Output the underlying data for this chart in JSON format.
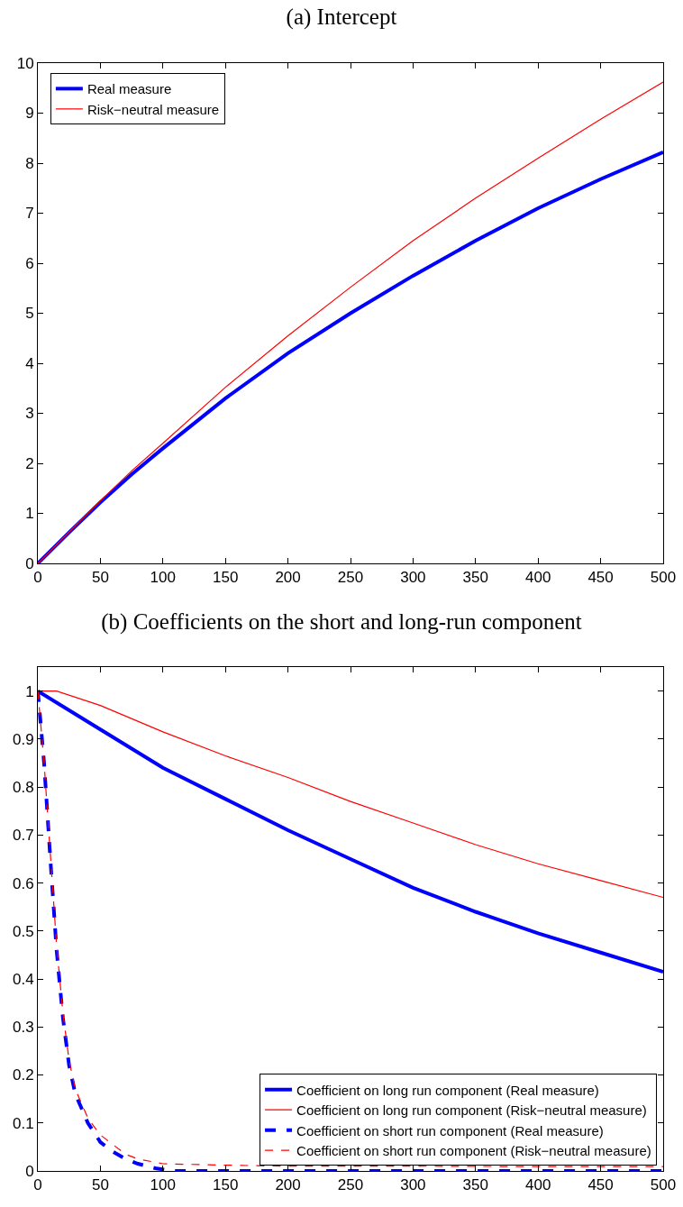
{
  "chart_data": [
    {
      "type": "line",
      "title": "(a) Intercept",
      "xlim": [
        0,
        500
      ],
      "xticks": [
        0,
        50,
        100,
        150,
        200,
        250,
        300,
        350,
        400,
        450,
        500
      ],
      "ylim": [
        0,
        10
      ],
      "yticks": [
        0,
        1,
        2,
        3,
        4,
        5,
        6,
        7,
        8,
        9,
        10
      ],
      "grid": false,
      "legend": "top left",
      "x": [
        0,
        25,
        50,
        75,
        100,
        150,
        200,
        250,
        300,
        350,
        400,
        450,
        500
      ],
      "series": [
        {
          "name": "Real measure",
          "color": "#0000ff",
          "line_style": "solid",
          "values": [
            0,
            0.62,
            1.22,
            1.78,
            2.3,
            3.3,
            4.2,
            5.0,
            5.75,
            6.45,
            7.1,
            7.68,
            8.22
          ]
        },
        {
          "name": "Risk−neutral measure",
          "color": "#ff0000",
          "line_style": "solid",
          "values": [
            0,
            0.63,
            1.25,
            1.85,
            2.4,
            3.52,
            4.55,
            5.52,
            6.45,
            7.3,
            8.1,
            8.88,
            9.62
          ]
        }
      ]
    },
    {
      "type": "line",
      "title": "(b) Coefficients on the short and long-run component",
      "xlim": [
        0,
        500
      ],
      "xticks": [
        0,
        50,
        100,
        150,
        200,
        250,
        300,
        350,
        400,
        450,
        500
      ],
      "ylim": [
        0,
        1.05
      ],
      "yticks": [
        0,
        0.1,
        0.2,
        0.3,
        0.4,
        0.5,
        0.6,
        0.7,
        0.8,
        0.9,
        1
      ],
      "grid": false,
      "legend": "bottom right",
      "series": [
        {
          "name": "Coefficient on long run component (Real measure)",
          "color": "#0000ff",
          "line_style": "solid",
          "x": [
            0,
            50,
            100,
            150,
            200,
            250,
            300,
            350,
            400,
            450,
            500
          ],
          "values": [
            1,
            0.92,
            0.84,
            0.775,
            0.71,
            0.65,
            0.59,
            0.54,
            0.495,
            0.455,
            0.415
          ]
        },
        {
          "name": "Coefficient on long run component (Risk−neutral measure)",
          "color": "#ff0000",
          "line_style": "solid",
          "x": [
            0,
            15,
            50,
            100,
            150,
            200,
            250,
            300,
            350,
            400,
            450,
            500
          ],
          "values": [
            1,
            1,
            0.97,
            0.915,
            0.865,
            0.82,
            0.77,
            0.725,
            0.68,
            0.64,
            0.605,
            0.57
          ]
        },
        {
          "name": "Coefficient on short run component (Real measure)",
          "color": "#0000ff",
          "line_style": "dashed",
          "x": [
            0,
            5,
            10,
            15,
            20,
            25,
            30,
            40,
            50,
            60,
            70,
            80,
            95,
            110,
            200,
            300,
            400,
            500
          ],
          "values": [
            1,
            0.85,
            0.65,
            0.46,
            0.32,
            0.22,
            0.16,
            0.1,
            0.06,
            0.04,
            0.025,
            0.015,
            0.005,
            0,
            0,
            0,
            0,
            0
          ]
        },
        {
          "name": "Coefficient on short run component (Risk−neutral measure)",
          "color": "#ff0000",
          "line_style": "dashed",
          "x": [
            0,
            5,
            10,
            15,
            20,
            25,
            30,
            40,
            50,
            60,
            70,
            80,
            100,
            150,
            200,
            300,
            400,
            500
          ],
          "values": [
            1,
            0.85,
            0.66,
            0.47,
            0.33,
            0.23,
            0.17,
            0.11,
            0.075,
            0.055,
            0.035,
            0.025,
            0.015,
            0.012,
            0.01,
            0.01,
            0.009,
            0.009
          ]
        }
      ]
    }
  ]
}
